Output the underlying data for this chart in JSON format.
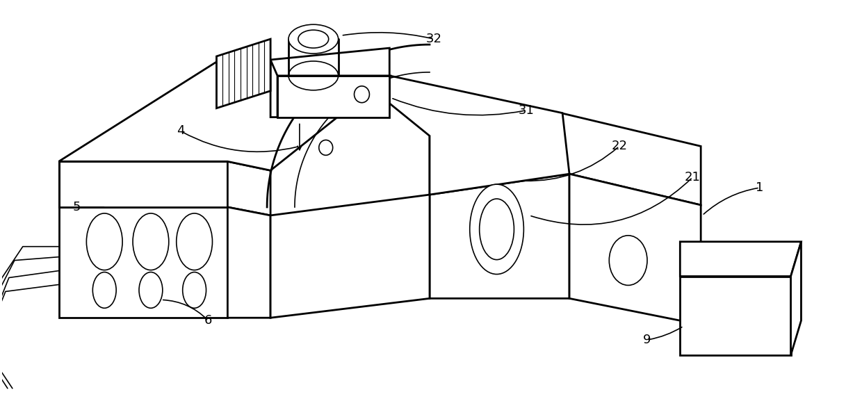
{
  "bg_color": "#ffffff",
  "lw_thick": 2.0,
  "lw_thin": 1.2,
  "lw_hair": 0.8,
  "label_fontsize": 13,
  "fig_width": 12.4,
  "fig_height": 5.87
}
